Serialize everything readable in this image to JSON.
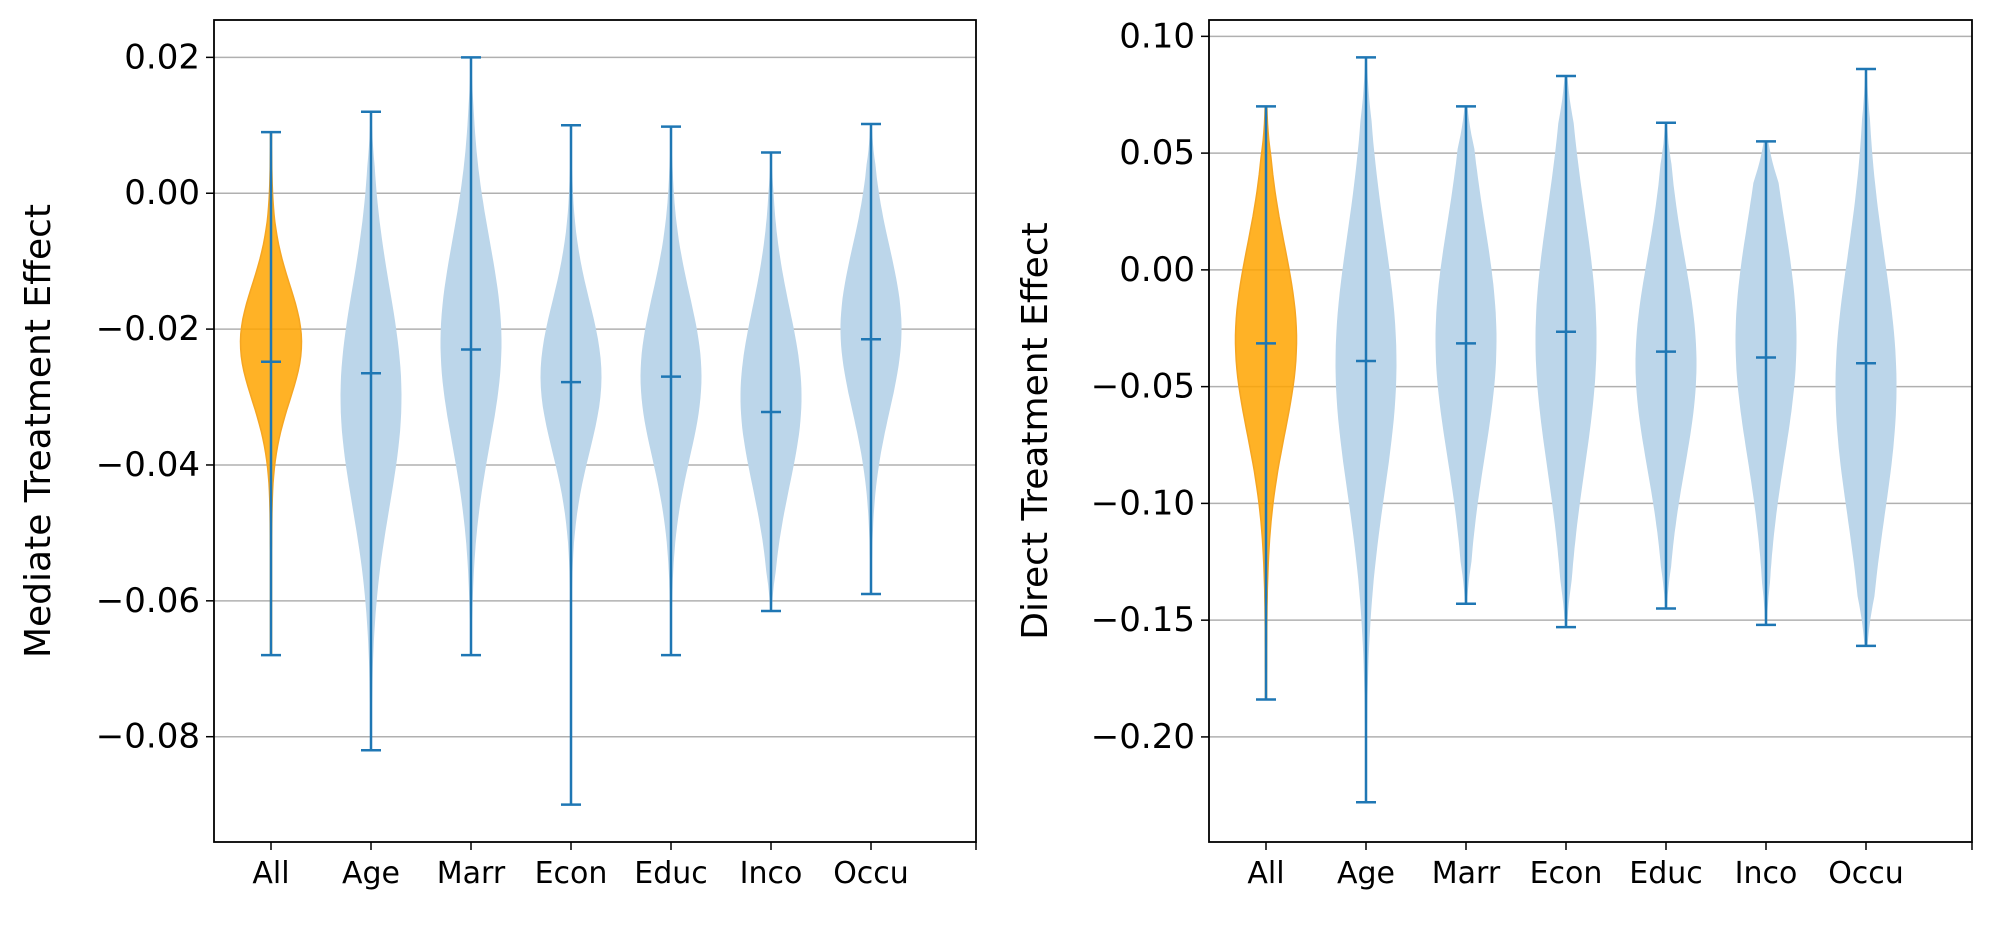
{
  "colors": {
    "highlight_fill": "#ffa500",
    "highlight_edge": "#f5a623",
    "body_fill": "#bcd6ea",
    "line": "#1f77b4",
    "grid": "#b0b0b0",
    "axis": "#000000"
  },
  "chart_data": [
    {
      "type": "violin",
      "ylabel": "Mediate Treatment Effect",
      "xlabel": "",
      "title": "",
      "grid": "horizontal",
      "categories": [
        "All",
        "Age",
        "Marr",
        "Econ",
        "Educ",
        "Inco",
        "Occu"
      ],
      "highlight": "All",
      "ylim": [
        -0.0955,
        0.0255
      ],
      "yticks": [
        0.02,
        0.0,
        -0.02,
        -0.04,
        -0.06,
        -0.08
      ],
      "ytick_labels": [
        "0.02",
        "0.00",
        "−0.02",
        "−0.04",
        "−0.06",
        "−0.08"
      ],
      "series": [
        {
          "name": "All",
          "min": -0.068,
          "max": 0.009,
          "mean": -0.0248,
          "mode": -0.022,
          "spread": 0.0085
        },
        {
          "name": "Age",
          "min": -0.082,
          "max": 0.012,
          "mean": -0.0265,
          "mode": -0.03,
          "spread": 0.016
        },
        {
          "name": "Marr",
          "min": -0.068,
          "max": 0.02,
          "mean": -0.023,
          "mode": -0.022,
          "spread": 0.015
        },
        {
          "name": "Econ",
          "min": -0.09,
          "max": 0.01,
          "mean": -0.0278,
          "mode": -0.027,
          "spread": 0.011
        },
        {
          "name": "Educ",
          "min": -0.068,
          "max": 0.0098,
          "mean": -0.027,
          "mode": -0.027,
          "spread": 0.012
        },
        {
          "name": "Inco",
          "min": -0.0615,
          "max": 0.006,
          "mean": -0.0322,
          "mode": -0.03,
          "spread": 0.013
        },
        {
          "name": "Occu",
          "min": -0.059,
          "max": 0.0102,
          "mean": -0.0215,
          "mode": -0.02,
          "spread": 0.012
        }
      ]
    },
    {
      "type": "violin",
      "ylabel": "Direct Treatment Effect",
      "xlabel": "",
      "title": "",
      "grid": "horizontal",
      "categories": [
        "All",
        "Age",
        "Marr",
        "Econ",
        "Educ",
        "Inco",
        "Occu"
      ],
      "highlight": "All",
      "ylim": [
        -0.245,
        0.107
      ],
      "yticks": [
        0.1,
        0.05,
        0.0,
        -0.05,
        -0.1,
        -0.15,
        -0.2
      ],
      "ytick_labels": [
        "0.10",
        "0.05",
        "0.00",
        "−0.05",
        "−0.10",
        "−0.15",
        "−0.20"
      ],
      "series": [
        {
          "name": "All",
          "min": -0.184,
          "max": 0.07,
          "mean": -0.0315,
          "mode": -0.03,
          "spread": 0.04
        },
        {
          "name": "Age",
          "min": -0.228,
          "max": 0.091,
          "mean": -0.039,
          "mode": -0.04,
          "spread": 0.055
        },
        {
          "name": "Marr",
          "min": -0.143,
          "max": 0.07,
          "mean": -0.0315,
          "mode": -0.03,
          "spread": 0.05
        },
        {
          "name": "Econ",
          "min": -0.153,
          "max": 0.083,
          "mean": -0.0265,
          "mode": -0.03,
          "spread": 0.055
        },
        {
          "name": "Educ",
          "min": -0.145,
          "max": 0.063,
          "mean": -0.035,
          "mode": -0.04,
          "spread": 0.045
        },
        {
          "name": "Inco",
          "min": -0.152,
          "max": 0.055,
          "mean": -0.0375,
          "mode": -0.03,
          "spread": 0.05
        },
        {
          "name": "Occu",
          "min": -0.161,
          "max": 0.086,
          "mean": -0.04,
          "mode": -0.05,
          "spread": 0.055
        }
      ]
    }
  ]
}
